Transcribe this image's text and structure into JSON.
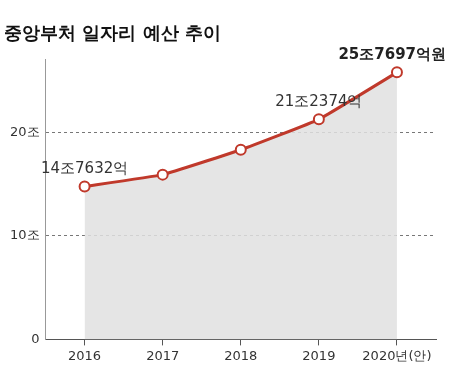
{
  "chart_data": {
    "type": "line",
    "title": "중앙부처 일자리 예산 추이",
    "categories": [
      "2016",
      "2017",
      "2018",
      "2019",
      "2020년(안)"
    ],
    "values": [
      14.7632,
      15.9,
      18.3,
      21.2374,
      25.7697
    ],
    "value_labels": [
      "14조7632억",
      null,
      null,
      "21조2374억",
      "25조7697억원"
    ],
    "data_labels": true,
    "color": "#c0392b",
    "marker": "circle",
    "ylim": [
      0,
      27
    ],
    "yticks": [
      0,
      {
        "value": 10,
        "label": "10조"
      },
      {
        "value": 20,
        "label": "20조"
      }
    ],
    "grid": true
  }
}
